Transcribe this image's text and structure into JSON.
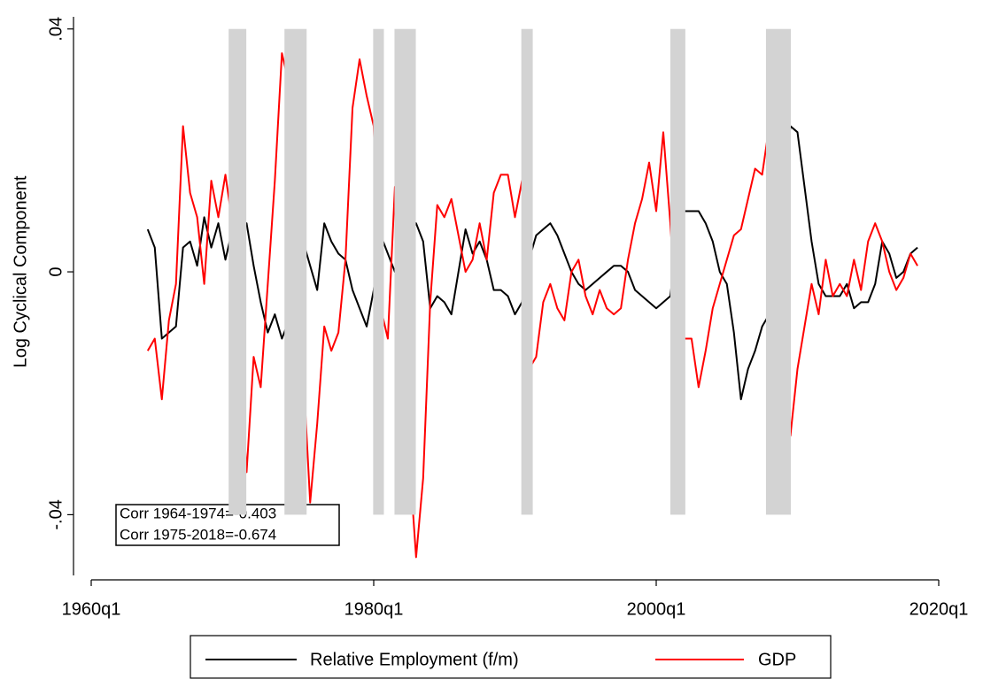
{
  "chart_data": {
    "type": "line",
    "y_label": "Log Cyclical Component",
    "annotations": [
      "Corr 1964-1974=-0.403",
      "Corr 1975-2018=-0.674"
    ],
    "xlim": [
      1960,
      2020
    ],
    "xticks": [
      {
        "value": 1960,
        "label": "1960q1"
      },
      {
        "value": 1980,
        "label": "1980q1"
      },
      {
        "value": 2000,
        "label": "2000q1"
      },
      {
        "value": 2020,
        "label": "2020q1"
      }
    ],
    "ylim": [
      -0.05,
      0.042
    ],
    "yticks": [
      {
        "value": -0.04,
        "label": "-.04"
      },
      0,
      {
        "value": 0.04,
        "label": ".04"
      }
    ],
    "shaded_periods": [
      {
        "start": 1969.73,
        "end": 1970.98
      },
      {
        "start": 1973.68,
        "end": 1975.25
      },
      {
        "start": 1979.96,
        "end": 1980.72
      },
      {
        "start": 1981.47,
        "end": 1982.98
      },
      {
        "start": 1990.45,
        "end": 1991.26
      },
      {
        "start": 2001.0,
        "end": 2002.06
      },
      {
        "start": 2007.77,
        "end": 2009.53
      }
    ],
    "shade_color": "#d3d3d3",
    "x": [
      1964,
      1964.5,
      1965,
      1965.5,
      1966,
      1966.5,
      1967,
      1967.5,
      1968,
      1968.5,
      1969,
      1969.5,
      1970,
      1970.5,
      1971,
      1971.5,
      1972,
      1972.5,
      1973,
      1973.5,
      1974,
      1974.5,
      1975,
      1975.5,
      1976,
      1976.5,
      1977,
      1977.5,
      1978,
      1978.5,
      1979,
      1979.5,
      1980,
      1980.5,
      1981,
      1981.5,
      1982,
      1982.5,
      1983,
      1983.5,
      1984,
      1984.5,
      1985,
      1985.5,
      1986,
      1986.5,
      1987,
      1987.5,
      1988,
      1988.5,
      1989,
      1989.5,
      1990,
      1990.5,
      1991,
      1991.5,
      1992,
      1992.5,
      1993,
      1993.5,
      1994,
      1994.5,
      1995,
      1995.5,
      1996,
      1996.5,
      1997,
      1997.5,
      1998,
      1998.5,
      1999,
      1999.5,
      2000,
      2000.5,
      2001,
      2001.5,
      2002,
      2002.5,
      2003,
      2003.5,
      2004,
      2004.5,
      2005,
      2005.5,
      2006,
      2006.5,
      2007,
      2007.5,
      2008,
      2008.5,
      2009,
      2009.5,
      2010,
      2010.5,
      2011,
      2011.5,
      2012,
      2012.5,
      2013,
      2013.5,
      2014,
      2014.5,
      2015,
      2015.5,
      2016,
      2016.5,
      2017,
      2017.5,
      2018,
      2018.5
    ],
    "series": [
      {
        "name": "Relative Employment (f/m)",
        "color": "#000000",
        "values": [
          0.007,
          0.004,
          -0.011,
          -0.01,
          -0.009,
          0.004,
          0.005,
          0.001,
          0.009,
          0.004,
          0.008,
          0.002,
          0.007,
          0.006,
          0.008,
          0.001,
          -0.005,
          -0.01,
          -0.007,
          -0.011,
          -0.008,
          0.001,
          0.005,
          0.001,
          -0.003,
          0.008,
          0.005,
          0.003,
          0.002,
          -0.003,
          -0.006,
          -0.009,
          -0.003,
          0.006,
          0.003,
          0.0,
          0.004,
          0.006,
          0.008,
          0.005,
          -0.006,
          -0.004,
          -0.005,
          -0.007,
          0.0,
          0.007,
          0.003,
          0.005,
          0.002,
          -0.003,
          -0.003,
          -0.004,
          -0.007,
          -0.005,
          0.002,
          0.006,
          0.007,
          0.008,
          0.006,
          0.003,
          0.0,
          -0.002,
          -0.003,
          -0.002,
          -0.001,
          0.0,
          0.001,
          0.001,
          0.0,
          -0.003,
          -0.004,
          -0.005,
          -0.006,
          -0.005,
          -0.004,
          0.006,
          0.01,
          0.01,
          0.01,
          0.008,
          0.005,
          0.0,
          -0.002,
          -0.01,
          -0.021,
          -0.016,
          -0.013,
          -0.009,
          -0.007,
          0.0,
          0.013,
          0.024,
          0.023,
          0.014,
          0.005,
          -0.002,
          -0.004,
          -0.004,
          -0.004,
          -0.002,
          -0.006,
          -0.005,
          -0.005,
          -0.002,
          0.005,
          0.003,
          -0.001,
          0.0,
          0.003,
          0.004
        ]
      },
      {
        "name": "GDP",
        "color": "#ff0000",
        "values": [
          -0.013,
          -0.011,
          -0.021,
          -0.008,
          -0.002,
          0.024,
          0.013,
          0.009,
          -0.002,
          0.015,
          0.009,
          0.016,
          0.008,
          -0.014,
          -0.033,
          -0.014,
          -0.019,
          -0.002,
          0.015,
          0.036,
          0.031,
          0.007,
          -0.016,
          -0.038,
          -0.025,
          -0.009,
          -0.013,
          -0.01,
          0.002,
          0.027,
          0.035,
          0.029,
          0.024,
          -0.006,
          -0.011,
          0.014,
          0.004,
          -0.03,
          -0.047,
          -0.034,
          -0.005,
          0.011,
          0.009,
          0.012,
          0.006,
          0.0,
          0.002,
          0.008,
          0.002,
          0.013,
          0.016,
          0.016,
          0.009,
          0.015,
          -0.016,
          -0.014,
          -0.005,
          -0.002,
          -0.006,
          -0.008,
          0.0,
          0.002,
          -0.004,
          -0.007,
          -0.003,
          -0.006,
          -0.007,
          -0.006,
          0.002,
          0.008,
          0.012,
          0.018,
          0.01,
          0.023,
          0.008,
          -0.01,
          -0.011,
          -0.011,
          -0.019,
          -0.013,
          -0.006,
          -0.002,
          0.002,
          0.006,
          0.007,
          0.012,
          0.017,
          0.016,
          0.024,
          0.018,
          -0.018,
          -0.027,
          -0.016,
          -0.009,
          -0.002,
          -0.007,
          0.002,
          -0.004,
          -0.002,
          -0.004,
          0.002,
          -0.003,
          0.005,
          0.008,
          0.005,
          0.0,
          -0.003,
          -0.001,
          0.003,
          0.001
        ]
      }
    ]
  }
}
